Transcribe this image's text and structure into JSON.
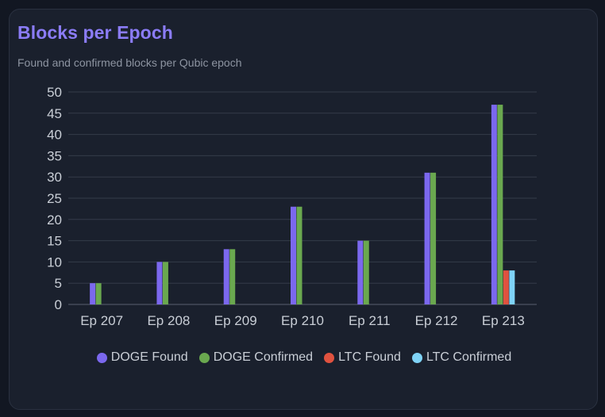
{
  "card": {
    "title": "Blocks per Epoch",
    "subtitle": "Found and confirmed blocks per Qubic epoch"
  },
  "chart_data": {
    "type": "bar",
    "categories": [
      "Ep 207",
      "Ep 208",
      "Ep 209",
      "Ep 210",
      "Ep 211",
      "Ep 212",
      "Ep 213"
    ],
    "series": [
      {
        "name": "DOGE Found",
        "color": "#7b68ee",
        "values": [
          5,
          10,
          13,
          23,
          15,
          31,
          47
        ]
      },
      {
        "name": "DOGE Confirmed",
        "color": "#6aa84f",
        "values": [
          5,
          10,
          13,
          23,
          15,
          31,
          47
        ]
      },
      {
        "name": "LTC Found",
        "color": "#e0523f",
        "values": [
          0,
          0,
          0,
          0,
          0,
          0,
          8
        ]
      },
      {
        "name": "LTC Confirmed",
        "color": "#7fd3f7",
        "values": [
          0,
          0,
          0,
          0,
          0,
          0,
          8
        ]
      }
    ],
    "yticks": [
      0,
      5,
      10,
      15,
      20,
      25,
      30,
      35,
      40,
      45,
      50
    ],
    "ylim": [
      0,
      50
    ],
    "grid": true,
    "legend_position": "bottom"
  }
}
